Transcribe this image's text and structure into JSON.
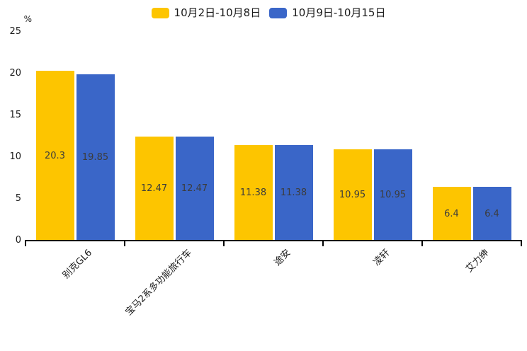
{
  "chart_data": {
    "type": "bar",
    "title": "",
    "unit": "%",
    "categories": [
      "别克GL6",
      "宝马2系多功能旅行车",
      "途安",
      "凌轩",
      "艾力绅"
    ],
    "series": [
      {
        "name": "10月2日-10月8日",
        "color": "#FDC500",
        "values": [
          20.3,
          12.47,
          11.38,
          10.95,
          6.4
        ]
      },
      {
        "name": "10月9日-10月15日",
        "color": "#3A66C8",
        "values": [
          19.85,
          12.47,
          11.38,
          10.95,
          6.4
        ]
      }
    ],
    "value_labels": [
      "20.3",
      "19.85",
      "12.47",
      "12.47",
      "11.38",
      "11.38",
      "10.95",
      "10.95",
      "6.4",
      "6.4"
    ],
    "ylim": [
      0,
      25
    ],
    "yticks": [
      0,
      5,
      10,
      15,
      20,
      25
    ],
    "grid": false,
    "legend_position": "top",
    "value_label_position": "inside-middle",
    "x_label_rotation_deg": -45
  }
}
